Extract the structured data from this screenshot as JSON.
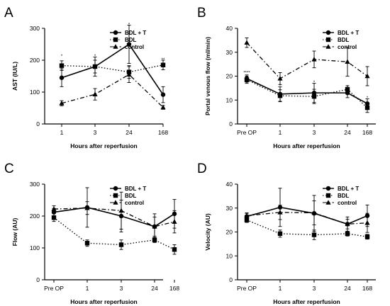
{
  "chart_data": [
    {
      "panel": "A",
      "type": "line",
      "xlabel": "Hours after reperfusion",
      "ylabel": "AST (IU/L)",
      "categories": [
        "1",
        "3",
        "24",
        "168"
      ],
      "ylim": [
        0,
        300
      ],
      "yticks": [
        0,
        100,
        200,
        300
      ],
      "legend_position": "top-right",
      "series": [
        {
          "name": "BDL + T",
          "marker": "circle",
          "dash": "solid",
          "values": [
            145,
            180,
            250,
            92
          ],
          "err": [
            28,
            20,
            60,
            25
          ]
        },
        {
          "name": "BDL",
          "marker": "square",
          "dash": "dotted",
          "values": [
            183,
            180,
            163,
            185
          ],
          "err": [
            15,
            30,
            20,
            15
          ]
        },
        {
          "name": "control",
          "marker": "triangle",
          "dash": "dashdot",
          "values": [
            65,
            93,
            155,
            52
          ],
          "err": [
            8,
            18,
            25,
            6
          ]
        }
      ],
      "annotations": [
        {
          "text": "*",
          "x": "1",
          "y": 213
        },
        {
          "text": "*",
          "x": "3",
          "y": 213
        },
        {
          "text": "*",
          "x": "24",
          "y": 312
        },
        {
          "text": "**",
          "x": "168",
          "y": 202
        }
      ]
    },
    {
      "panel": "B",
      "type": "line",
      "xlabel": "Hours after reperfusion",
      "ylabel": "Portal venous flow (ml/min)",
      "categories": [
        "Pre OP",
        "1",
        "3",
        "24",
        "168"
      ],
      "ylim": [
        0,
        40
      ],
      "yticks": [
        0,
        10,
        20,
        30,
        40
      ],
      "legend_position": "top-right",
      "series": [
        {
          "name": "BDL + T",
          "marker": "circle",
          "dash": "solid",
          "values": [
            19,
            12.5,
            13,
            13,
            8.5
          ],
          "err": [
            1.5,
            3,
            4,
            2,
            2
          ]
        },
        {
          "name": "BDL",
          "marker": "square",
          "dash": "dotted",
          "values": [
            18.5,
            11.8,
            11.5,
            14.5,
            6.8
          ],
          "err": [
            1.5,
            2.5,
            3,
            1.5,
            2
          ]
        },
        {
          "name": "control",
          "marker": "triangle",
          "dash": "dashdot",
          "values": [
            34,
            19,
            27,
            26,
            20
          ],
          "err": [
            2,
            2.5,
            3.5,
            6,
            4
          ]
        }
      ],
      "annotations": [
        {
          "text": "****",
          "x": "Pre OP",
          "y": 21.5
        },
        {
          "text": "*",
          "x": "1",
          "y": 16
        },
        {
          "text": "*",
          "x": "3",
          "y": 17.5
        },
        {
          "text": "*",
          "x": "24",
          "y": 15.5
        },
        {
          "text": "*",
          "x": "168",
          "y": 11
        }
      ]
    },
    {
      "panel": "C",
      "type": "line",
      "xlabel": "Hours after reperfusion",
      "ylabel": "Flow (AU)",
      "categories": [
        "Pre OP",
        "1",
        "3",
        "24",
        "168"
      ],
      "ylim": [
        0,
        300
      ],
      "yticks": [
        0,
        100,
        200,
        300
      ],
      "legend_position": "top-right",
      "series": [
        {
          "name": "BDL + T",
          "marker": "circle",
          "dash": "solid",
          "values": [
            212,
            227,
            200,
            167,
            207
          ],
          "err": [
            12,
            62,
            50,
            40,
            45
          ]
        },
        {
          "name": "BDL",
          "marker": "square",
          "dash": "dotted",
          "values": [
            195,
            115,
            110,
            125,
            95
          ],
          "err": [
            12,
            10,
            15,
            8,
            15
          ]
        },
        {
          "name": "control",
          "marker": "triangle",
          "dash": "dashdot",
          "values": [
            222,
            225,
            217,
            167,
            182
          ],
          "err": [
            10,
            20,
            58,
            30,
            35
          ]
        }
      ],
      "annotations": []
    },
    {
      "panel": "D",
      "type": "line",
      "xlabel": "Hours after reperfusion",
      "ylabel": "Velocity (AU)",
      "categories": [
        "Pre OP",
        "1",
        "3",
        "24",
        "168"
      ],
      "ylim": [
        0,
        40
      ],
      "yticks": [
        0,
        10,
        20,
        30,
        40
      ],
      "legend_position": "top-right",
      "series": [
        {
          "name": "BDL + T",
          "marker": "circle",
          "dash": "solid",
          "values": [
            26.5,
            30.3,
            27.8,
            23.3,
            26.8
          ],
          "err": [
            1.5,
            8,
            7.5,
            3,
            4.5
          ]
        },
        {
          "name": "BDL",
          "marker": "square",
          "dash": "dotted",
          "values": [
            25,
            19.3,
            18.8,
            19.3,
            18
          ],
          "err": [
            1,
            1.5,
            2,
            1,
            1
          ]
        },
        {
          "name": "control",
          "marker": "triangle",
          "dash": "dashdot",
          "values": [
            26.8,
            28.2,
            28,
            23.3,
            23.8
          ],
          "err": [
            1,
            3,
            5,
            2,
            4
          ]
        }
      ],
      "annotations": []
    }
  ]
}
